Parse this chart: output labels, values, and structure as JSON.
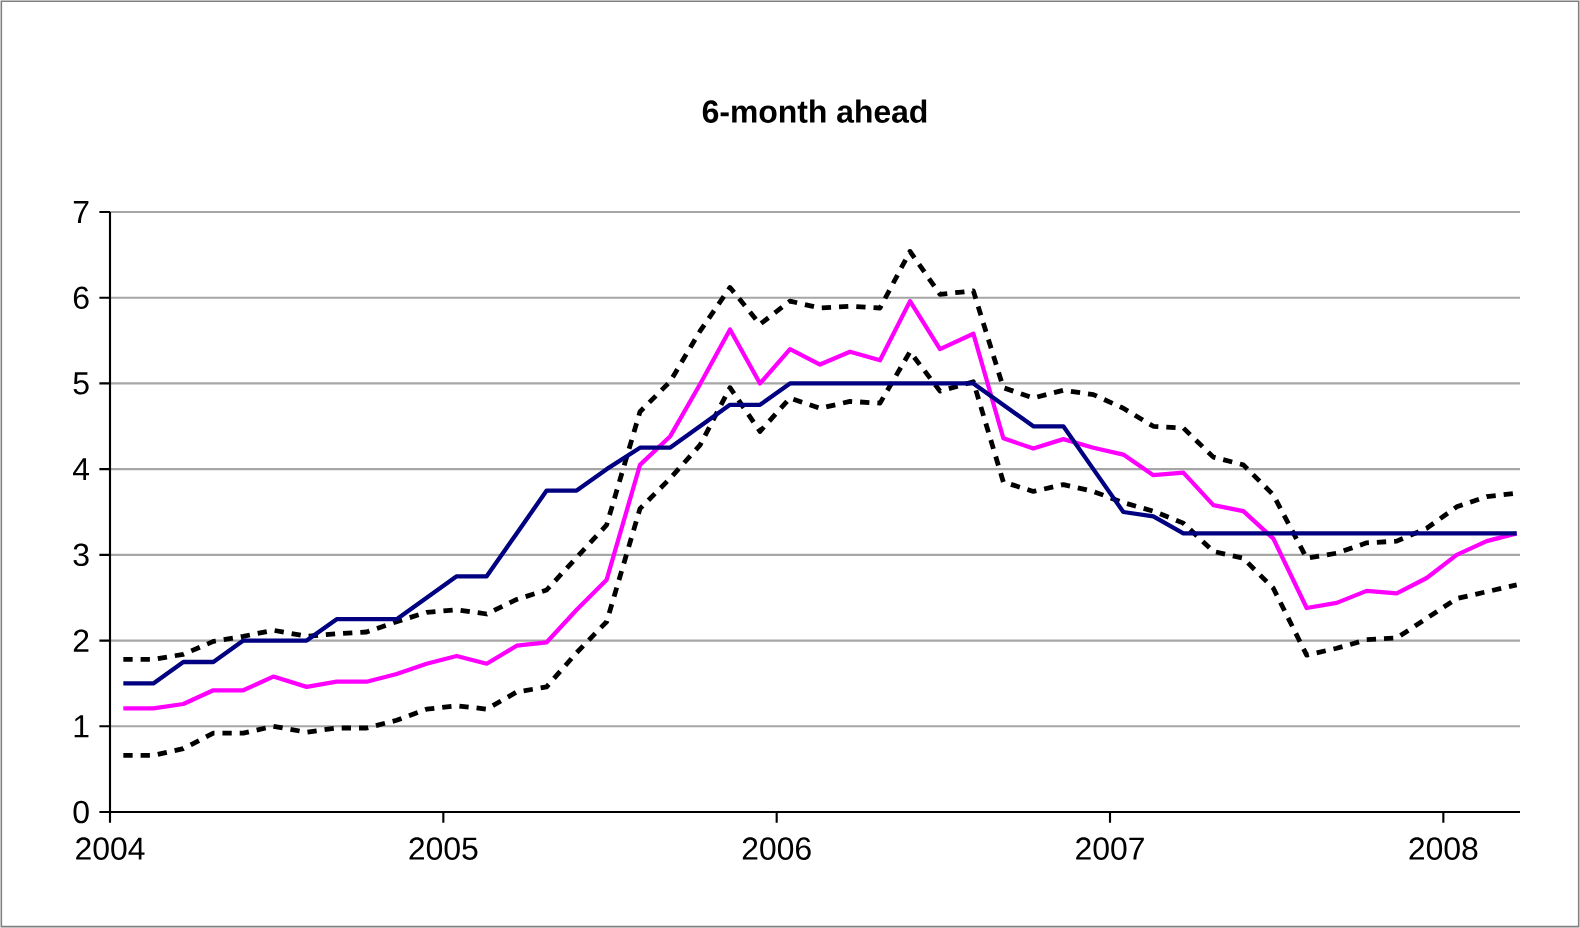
{
  "chart_data": {
    "type": "line",
    "title": "6-month ahead",
    "x": [
      2004.04,
      2004.13,
      2004.22,
      2004.31,
      2004.4,
      2004.49,
      2004.59,
      2004.68,
      2004.77,
      2004.86,
      2004.95,
      2005.04,
      2005.13,
      2005.22,
      2005.31,
      2005.4,
      2005.49,
      2005.59,
      2005.68,
      2005.77,
      2005.86,
      2005.95,
      2006.04,
      2006.13,
      2006.22,
      2006.31,
      2006.4,
      2006.49,
      2006.59,
      2006.68,
      2006.77,
      2006.86,
      2006.95,
      2007.04,
      2007.13,
      2007.22,
      2007.31,
      2007.4,
      2007.49,
      2007.59,
      2007.68,
      2007.77,
      2007.86,
      2007.95,
      2008.04,
      2008.13,
      2008.22
    ],
    "series": [
      {
        "color": "#000000",
        "line_style": "dashed",
        "values": [
          1.78,
          1.78,
          1.84,
          1.99,
          2.05,
          2.12,
          2.05,
          2.08,
          2.1,
          2.22,
          2.33,
          2.36,
          2.31,
          2.48,
          2.59,
          2.97,
          3.35,
          4.67,
          5.02,
          5.61,
          6.12,
          5.69,
          5.96,
          5.88,
          5.9,
          5.88,
          6.54,
          6.04,
          6.08,
          4.95,
          4.83,
          4.92,
          4.87,
          4.71,
          4.5,
          4.48,
          4.14,
          4.05,
          3.7,
          2.96,
          3.02,
          3.14,
          3.16,
          3.31,
          3.56,
          3.68,
          3.72
        ]
      },
      {
        "color": "#000000",
        "line_style": "dashed",
        "values": [
          0.66,
          0.66,
          0.74,
          0.92,
          0.92,
          1.0,
          0.93,
          0.98,
          0.98,
          1.07,
          1.2,
          1.24,
          1.2,
          1.4,
          1.46,
          1.86,
          2.22,
          3.54,
          3.89,
          4.28,
          4.95,
          4.44,
          4.83,
          4.71,
          4.79,
          4.77,
          5.37,
          4.91,
          5.02,
          3.85,
          3.74,
          3.82,
          3.74,
          3.61,
          3.51,
          3.37,
          3.04,
          2.96,
          2.61,
          1.83,
          1.91,
          2.01,
          2.03,
          2.26,
          2.49,
          2.57,
          2.65
        ]
      },
      {
        "color": "#ff00ff",
        "line_style": "solid",
        "values": [
          1.21,
          1.21,
          1.26,
          1.42,
          1.42,
          1.58,
          1.46,
          1.52,
          1.52,
          1.61,
          1.73,
          1.82,
          1.73,
          1.94,
          1.98,
          2.36,
          2.71,
          4.05,
          4.38,
          4.99,
          5.63,
          5.0,
          5.4,
          5.22,
          5.37,
          5.27,
          5.96,
          5.4,
          5.58,
          4.36,
          4.24,
          4.35,
          4.25,
          4.17,
          3.93,
          3.96,
          3.58,
          3.51,
          3.19,
          2.38,
          2.44,
          2.58,
          2.55,
          2.73,
          3.0,
          3.16,
          3.25
        ]
      },
      {
        "color": "#000080",
        "line_style": "solid",
        "values": [
          1.5,
          1.5,
          1.75,
          1.75,
          2.0,
          2.0,
          2.0,
          2.25,
          2.25,
          2.25,
          2.5,
          2.75,
          2.75,
          3.25,
          3.75,
          3.75,
          4.0,
          4.25,
          4.25,
          4.5,
          4.75,
          4.75,
          5.0,
          5.0,
          5.0,
          5.0,
          5.0,
          5.0,
          5.0,
          4.75,
          4.5,
          4.5,
          4.0,
          3.5,
          3.45,
          3.25,
          3.25,
          3.25,
          3.25,
          3.25,
          3.25,
          3.25,
          3.25,
          3.25,
          3.25,
          3.25,
          3.25
        ]
      }
    ],
    "xlim": [
      2004,
      2008.23
    ],
    "xticks": [
      2004,
      2005,
      2006,
      2007,
      2008
    ],
    "ylim": [
      0,
      7
    ],
    "yticks": [
      0,
      1,
      2,
      3,
      4,
      5,
      6,
      7
    ],
    "grid": "y",
    "legend": false,
    "marker": "none"
  }
}
